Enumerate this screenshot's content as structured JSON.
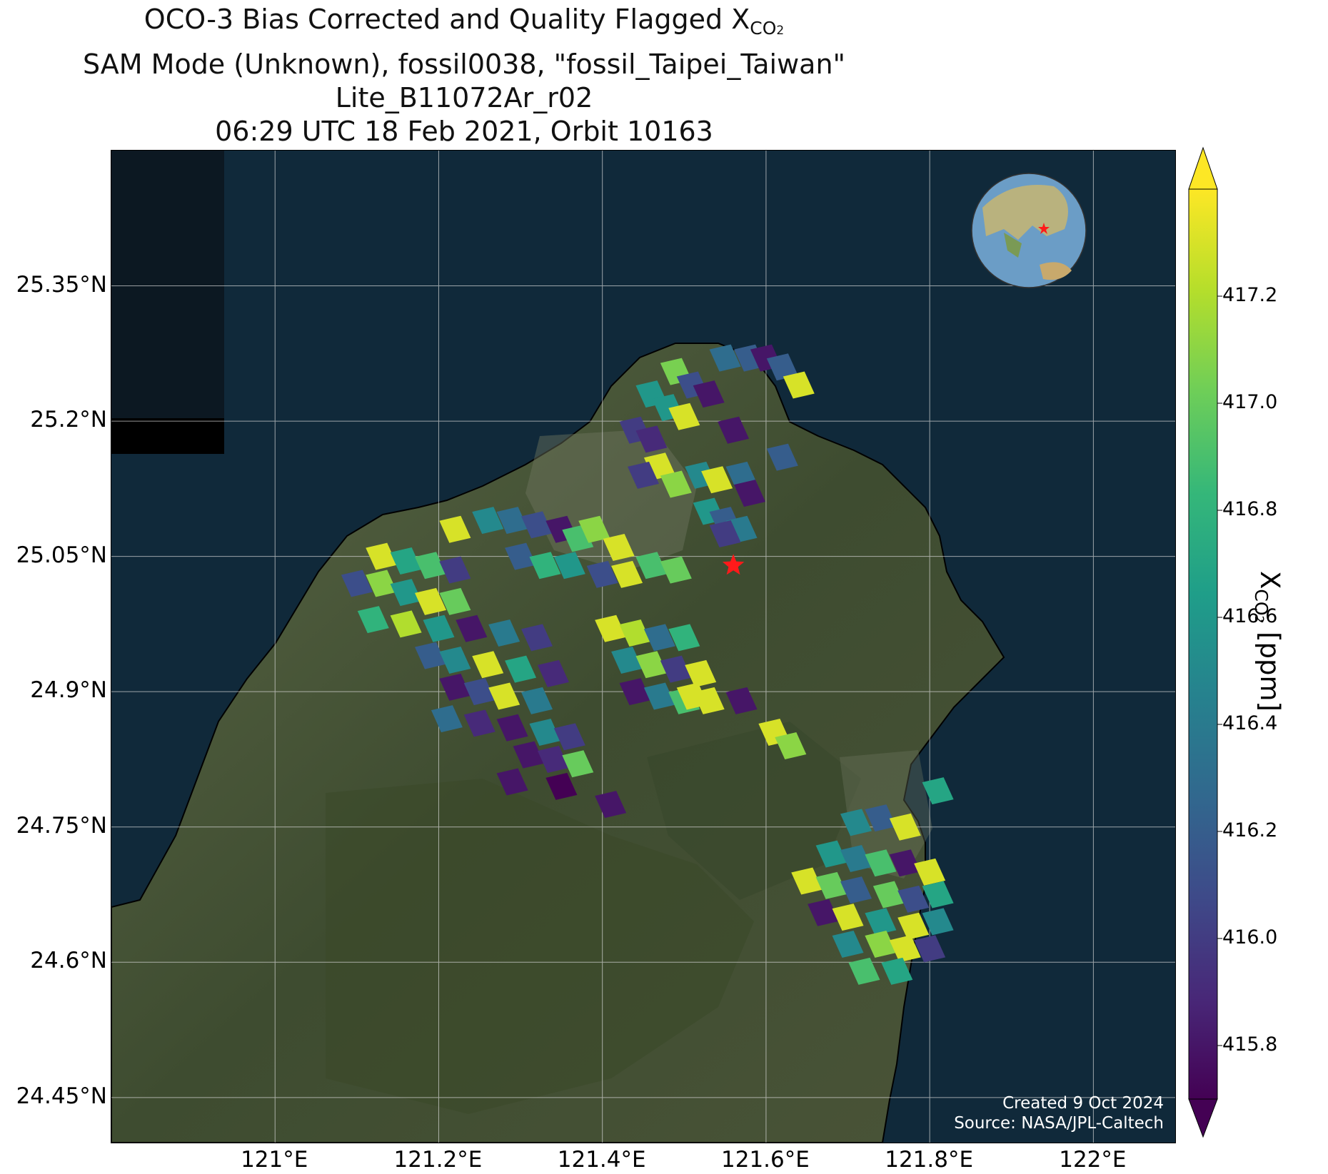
{
  "title": {
    "line1_prefix": "OCO-3 Bias Corrected and Quality Flagged X",
    "line1_sub": "CO",
    "line1_sub2": "2",
    "line2": "SAM Mode (Unknown), fossil0038, \"fossil_Taipei_Taiwan\"",
    "line3": "Lite_B11072Ar_r02",
    "line4": "06:29 UTC 18 Feb 2021, Orbit 10163"
  },
  "axes": {
    "lat_ticks": [
      "25.35°N",
      "25.2°N",
      "25.05°N",
      "24.9°N",
      "24.75°N",
      "24.6°N",
      "24.45°N"
    ],
    "lat_values": [
      25.35,
      25.2,
      25.05,
      24.9,
      24.75,
      24.6,
      24.45
    ],
    "lon_ticks": [
      "121°E",
      "121.2°E",
      "121.4°E",
      "121.6°E",
      "121.8°E",
      "122°E"
    ],
    "lon_values": [
      121.0,
      121.2,
      121.4,
      121.6,
      121.8,
      122.0
    ],
    "lat_range": [
      24.4,
      25.5
    ],
    "lon_range": [
      120.8,
      122.1
    ]
  },
  "target": {
    "lon": 121.56,
    "lat": 25.04,
    "marker": "red-star"
  },
  "credit": {
    "line1": "Created 9 Oct 2024",
    "line2": "Source: NASA/JPL-Caltech"
  },
  "colorbar": {
    "label_prefix": "X",
    "label_sub": "CO",
    "label_sub2": "2",
    "label_suffix": " [ppm]",
    "ticks": [
      "417.2",
      "417.0",
      "416.8",
      "416.6",
      "416.4",
      "416.2",
      "416.0",
      "415.8"
    ],
    "tick_values": [
      417.2,
      417.0,
      416.8,
      416.6,
      416.4,
      416.2,
      416.0,
      415.8
    ],
    "range": [
      415.7,
      417.4
    ],
    "colormap": "viridis",
    "extend": "both"
  },
  "inset_globe": {
    "description_icon": "globe-icon",
    "marker": "red-star"
  },
  "colors": {
    "ocean": "#0f2a38",
    "land": "#4a5a3c",
    "star": "#ff1a1a"
  },
  "chart_data": {
    "type": "scatter",
    "value_key": "xco2_ppm",
    "points": [
      {
        "lon": 121.49,
        "lat": 25.255,
        "v": 417.05
      },
      {
        "lon": 121.51,
        "lat": 25.24,
        "v": 416.1
      },
      {
        "lon": 121.53,
        "lat": 25.23,
        "v": 415.8
      },
      {
        "lon": 121.55,
        "lat": 25.27,
        "v": 416.3
      },
      {
        "lon": 121.58,
        "lat": 25.27,
        "v": 416.2
      },
      {
        "lon": 121.6,
        "lat": 25.27,
        "v": 415.8
      },
      {
        "lon": 121.62,
        "lat": 25.26,
        "v": 416.2
      },
      {
        "lon": 121.64,
        "lat": 25.24,
        "v": 417.3
      },
      {
        "lon": 121.46,
        "lat": 25.23,
        "v": 416.6
      },
      {
        "lon": 121.48,
        "lat": 25.215,
        "v": 416.6
      },
      {
        "lon": 121.5,
        "lat": 25.205,
        "v": 417.3
      },
      {
        "lon": 121.44,
        "lat": 25.19,
        "v": 416.0
      },
      {
        "lon": 121.46,
        "lat": 25.18,
        "v": 415.9
      },
      {
        "lon": 121.56,
        "lat": 25.19,
        "v": 415.8
      },
      {
        "lon": 121.62,
        "lat": 25.16,
        "v": 416.2
      },
      {
        "lon": 121.47,
        "lat": 25.15,
        "v": 417.3
      },
      {
        "lon": 121.45,
        "lat": 25.14,
        "v": 416.0
      },
      {
        "lon": 121.49,
        "lat": 25.13,
        "v": 417.1
      },
      {
        "lon": 121.52,
        "lat": 25.14,
        "v": 416.5
      },
      {
        "lon": 121.54,
        "lat": 25.135,
        "v": 417.3
      },
      {
        "lon": 121.57,
        "lat": 25.14,
        "v": 416.3
      },
      {
        "lon": 121.58,
        "lat": 25.12,
        "v": 415.8
      },
      {
        "lon": 121.53,
        "lat": 25.1,
        "v": 416.6
      },
      {
        "lon": 121.55,
        "lat": 25.09,
        "v": 416.2
      },
      {
        "lon": 121.57,
        "lat": 25.08,
        "v": 416.4
      },
      {
        "lon": 121.55,
        "lat": 25.075,
        "v": 416.0
      },
      {
        "lon": 121.22,
        "lat": 25.08,
        "v": 417.3
      },
      {
        "lon": 121.26,
        "lat": 25.09,
        "v": 416.5
      },
      {
        "lon": 121.29,
        "lat": 25.09,
        "v": 416.3
      },
      {
        "lon": 121.32,
        "lat": 25.085,
        "v": 416.1
      },
      {
        "lon": 121.35,
        "lat": 25.08,
        "v": 415.8
      },
      {
        "lon": 121.37,
        "lat": 25.07,
        "v": 416.9
      },
      {
        "lon": 121.39,
        "lat": 25.08,
        "v": 417.1
      },
      {
        "lon": 121.42,
        "lat": 25.06,
        "v": 417.3
      },
      {
        "lon": 121.3,
        "lat": 25.05,
        "v": 416.2
      },
      {
        "lon": 121.33,
        "lat": 25.04,
        "v": 416.8
      },
      {
        "lon": 121.36,
        "lat": 25.04,
        "v": 416.6
      },
      {
        "lon": 121.4,
        "lat": 25.03,
        "v": 416.1
      },
      {
        "lon": 121.43,
        "lat": 25.03,
        "v": 417.3
      },
      {
        "lon": 121.46,
        "lat": 25.04,
        "v": 416.9
      },
      {
        "lon": 121.49,
        "lat": 25.035,
        "v": 417.0
      },
      {
        "lon": 121.13,
        "lat": 25.05,
        "v": 417.3
      },
      {
        "lon": 121.16,
        "lat": 25.045,
        "v": 416.7
      },
      {
        "lon": 121.19,
        "lat": 25.04,
        "v": 416.9
      },
      {
        "lon": 121.22,
        "lat": 25.035,
        "v": 416.0
      },
      {
        "lon": 121.1,
        "lat": 25.02,
        "v": 416.1
      },
      {
        "lon": 121.13,
        "lat": 25.02,
        "v": 417.1
      },
      {
        "lon": 121.16,
        "lat": 25.01,
        "v": 416.6
      },
      {
        "lon": 121.19,
        "lat": 25.0,
        "v": 417.3
      },
      {
        "lon": 121.22,
        "lat": 25.0,
        "v": 417.0
      },
      {
        "lon": 121.12,
        "lat": 24.98,
        "v": 416.8
      },
      {
        "lon": 121.16,
        "lat": 24.975,
        "v": 417.2
      },
      {
        "lon": 121.2,
        "lat": 24.97,
        "v": 416.6
      },
      {
        "lon": 121.24,
        "lat": 24.97,
        "v": 415.8
      },
      {
        "lon": 121.28,
        "lat": 24.965,
        "v": 416.4
      },
      {
        "lon": 121.32,
        "lat": 24.96,
        "v": 416.0
      },
      {
        "lon": 121.19,
        "lat": 24.94,
        "v": 416.2
      },
      {
        "lon": 121.22,
        "lat": 24.935,
        "v": 416.5
      },
      {
        "lon": 121.26,
        "lat": 24.93,
        "v": 417.3
      },
      {
        "lon": 121.3,
        "lat": 24.925,
        "v": 416.7
      },
      {
        "lon": 121.34,
        "lat": 24.92,
        "v": 415.9
      },
      {
        "lon": 121.41,
        "lat": 24.97,
        "v": 417.3
      },
      {
        "lon": 121.44,
        "lat": 24.965,
        "v": 417.2
      },
      {
        "lon": 121.47,
        "lat": 24.96,
        "v": 416.3
      },
      {
        "lon": 121.5,
        "lat": 24.96,
        "v": 416.8
      },
      {
        "lon": 121.43,
        "lat": 24.935,
        "v": 416.5
      },
      {
        "lon": 121.46,
        "lat": 24.93,
        "v": 417.1
      },
      {
        "lon": 121.49,
        "lat": 24.925,
        "v": 416.0
      },
      {
        "lon": 121.52,
        "lat": 24.92,
        "v": 417.3
      },
      {
        "lon": 121.44,
        "lat": 24.9,
        "v": 415.8
      },
      {
        "lon": 121.47,
        "lat": 24.895,
        "v": 416.4
      },
      {
        "lon": 121.5,
        "lat": 24.89,
        "v": 416.9
      },
      {
        "lon": 121.53,
        "lat": 24.89,
        "v": 417.3
      },
      {
        "lon": 121.22,
        "lat": 24.905,
        "v": 415.8
      },
      {
        "lon": 121.25,
        "lat": 24.9,
        "v": 416.1
      },
      {
        "lon": 121.28,
        "lat": 24.895,
        "v": 417.3
      },
      {
        "lon": 121.32,
        "lat": 24.89,
        "v": 416.4
      },
      {
        "lon": 121.21,
        "lat": 24.87,
        "v": 416.3
      },
      {
        "lon": 121.25,
        "lat": 24.865,
        "v": 415.9
      },
      {
        "lon": 121.29,
        "lat": 24.86,
        "v": 415.8
      },
      {
        "lon": 121.33,
        "lat": 24.855,
        "v": 416.5
      },
      {
        "lon": 121.36,
        "lat": 24.85,
        "v": 416.0
      },
      {
        "lon": 121.31,
        "lat": 24.83,
        "v": 415.8
      },
      {
        "lon": 121.34,
        "lat": 24.825,
        "v": 415.9
      },
      {
        "lon": 121.37,
        "lat": 24.82,
        "v": 417.0
      },
      {
        "lon": 121.29,
        "lat": 24.8,
        "v": 415.8
      },
      {
        "lon": 121.35,
        "lat": 24.795,
        "v": 415.7
      },
      {
        "lon": 121.41,
        "lat": 24.775,
        "v": 415.8
      },
      {
        "lon": 121.57,
        "lat": 24.89,
        "v": 415.8
      },
      {
        "lon": 121.51,
        "lat": 24.895,
        "v": 417.3
      },
      {
        "lon": 121.61,
        "lat": 24.855,
        "v": 417.3
      },
      {
        "lon": 121.63,
        "lat": 24.84,
        "v": 417.1
      },
      {
        "lon": 121.81,
        "lat": 24.79,
        "v": 416.7
      },
      {
        "lon": 121.71,
        "lat": 24.755,
        "v": 416.5
      },
      {
        "lon": 121.74,
        "lat": 24.76,
        "v": 416.2
      },
      {
        "lon": 121.77,
        "lat": 24.75,
        "v": 417.3
      },
      {
        "lon": 121.68,
        "lat": 24.72,
        "v": 416.6
      },
      {
        "lon": 121.71,
        "lat": 24.715,
        "v": 416.4
      },
      {
        "lon": 121.74,
        "lat": 24.71,
        "v": 416.9
      },
      {
        "lon": 121.77,
        "lat": 24.71,
        "v": 415.8
      },
      {
        "lon": 121.8,
        "lat": 24.7,
        "v": 417.3
      },
      {
        "lon": 121.65,
        "lat": 24.69,
        "v": 417.3
      },
      {
        "lon": 121.68,
        "lat": 24.685,
        "v": 417.0
      },
      {
        "lon": 121.71,
        "lat": 24.68,
        "v": 416.2
      },
      {
        "lon": 121.75,
        "lat": 24.675,
        "v": 417.0
      },
      {
        "lon": 121.78,
        "lat": 24.67,
        "v": 416.1
      },
      {
        "lon": 121.81,
        "lat": 24.675,
        "v": 416.7
      },
      {
        "lon": 121.67,
        "lat": 24.655,
        "v": 415.8
      },
      {
        "lon": 121.7,
        "lat": 24.65,
        "v": 417.3
      },
      {
        "lon": 121.74,
        "lat": 24.645,
        "v": 416.6
      },
      {
        "lon": 121.78,
        "lat": 24.64,
        "v": 417.3
      },
      {
        "lon": 121.81,
        "lat": 24.645,
        "v": 416.5
      },
      {
        "lon": 121.7,
        "lat": 24.62,
        "v": 416.5
      },
      {
        "lon": 121.74,
        "lat": 24.62,
        "v": 417.1
      },
      {
        "lon": 121.77,
        "lat": 24.615,
        "v": 417.3
      },
      {
        "lon": 121.8,
        "lat": 24.615,
        "v": 416.0
      },
      {
        "lon": 121.72,
        "lat": 24.59,
        "v": 416.9
      },
      {
        "lon": 121.76,
        "lat": 24.59,
        "v": 416.7
      }
    ]
  }
}
